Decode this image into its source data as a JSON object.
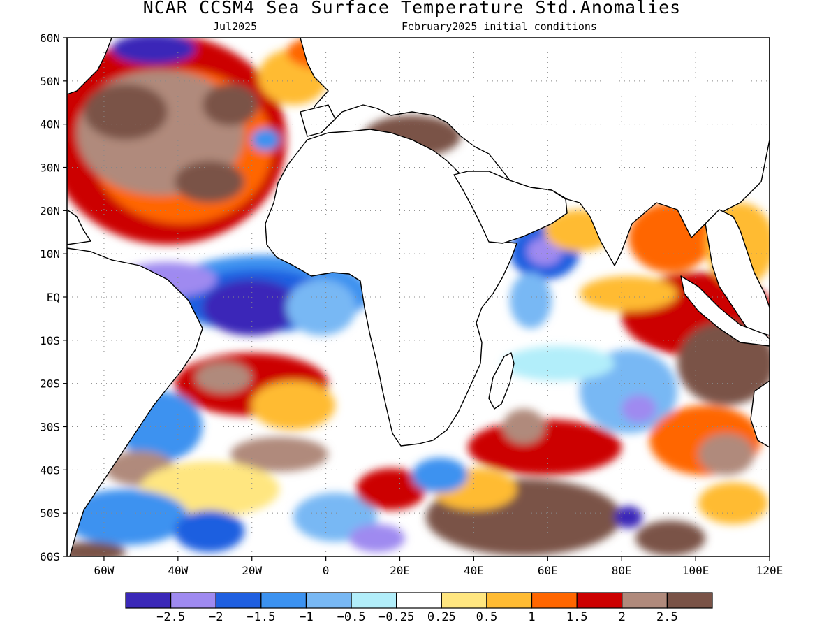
{
  "title": "NCAR_CCSM4 Sea Surface Temperature Std.Anomalies",
  "subtitle_left": "Jul2025",
  "subtitle_right": "February2025 initial conditions",
  "map": {
    "lon_range": [
      -70,
      120
    ],
    "lat_range": [
      -60,
      60
    ],
    "grid": "dotted",
    "lat_ticks": [
      {
        "value": 60,
        "label": "60N"
      },
      {
        "value": 50,
        "label": "50N"
      },
      {
        "value": 40,
        "label": "40N"
      },
      {
        "value": 30,
        "label": "30N"
      },
      {
        "value": 20,
        "label": "20N"
      },
      {
        "value": 10,
        "label": "10N"
      },
      {
        "value": 0,
        "label": "EQ"
      },
      {
        "value": -10,
        "label": "10S"
      },
      {
        "value": -20,
        "label": "20S"
      },
      {
        "value": -30,
        "label": "30S"
      },
      {
        "value": -40,
        "label": "40S"
      },
      {
        "value": -50,
        "label": "50S"
      },
      {
        "value": -60,
        "label": "60S"
      }
    ],
    "lon_ticks": [
      {
        "value": -60,
        "label": "60W"
      },
      {
        "value": -40,
        "label": "40W"
      },
      {
        "value": -20,
        "label": "20W"
      },
      {
        "value": 0,
        "label": "0"
      },
      {
        "value": 20,
        "label": "20E"
      },
      {
        "value": 40,
        "label": "40E"
      },
      {
        "value": 60,
        "label": "60E"
      },
      {
        "value": 80,
        "label": "80E"
      },
      {
        "value": 100,
        "label": "100E"
      },
      {
        "value": 120,
        "label": "120E"
      }
    ]
  },
  "colorbar": {
    "colors": [
      "#3a28b8",
      "#9f8af0",
      "#1f5fe0",
      "#3c92f0",
      "#78b8f4",
      "#b2eefa",
      "#ffffff",
      "#ffe680",
      "#ffbb33",
      "#ff6600",
      "#cc0000",
      "#b08a7c",
      "#7a5347"
    ],
    "labels": [
      "-2.5",
      "-2",
      "-1.5",
      "-1",
      "-0.5",
      "-0.25",
      "0.25",
      "0.5",
      "1",
      "1.5",
      "2",
      "2.5"
    ]
  }
}
